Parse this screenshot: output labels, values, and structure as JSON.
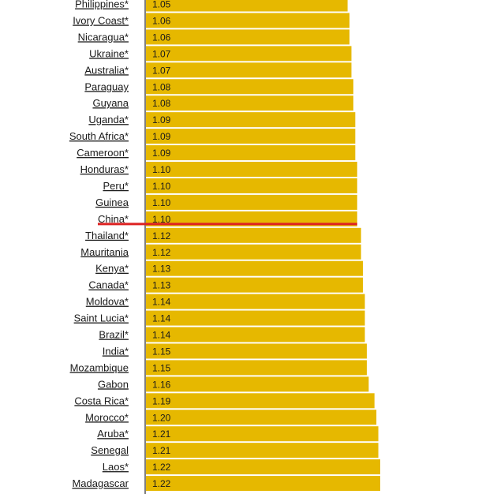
{
  "chart_data": {
    "type": "bar",
    "orientation": "horizontal",
    "title": "",
    "xlabel": "",
    "ylabel": "",
    "xlim": [
      0,
      1.22
    ],
    "grid": false,
    "legend": "none",
    "categories": [
      "Philippines*",
      "Ivory Coast*",
      "Nicaragua*",
      "Ukraine*",
      "Australia*",
      "Paraguay",
      "Guyana",
      "Uganda*",
      "South Africa*",
      "Cameroon*",
      "Honduras*",
      "Peru*",
      "Guinea",
      "China*",
      "Thailand*",
      "Mauritania",
      "Kenya*",
      "Canada*",
      "Moldova*",
      "Saint Lucia*",
      "Brazil*",
      "India*",
      "Mozambique",
      "Gabon",
      "Costa Rica*",
      "Morocco*",
      "Aruba*",
      "Senegal",
      "Laos*",
      "Madagascar"
    ],
    "values": [
      1.05,
      1.06,
      1.06,
      1.07,
      1.07,
      1.08,
      1.08,
      1.09,
      1.09,
      1.09,
      1.1,
      1.1,
      1.1,
      1.1,
      1.12,
      1.12,
      1.13,
      1.13,
      1.14,
      1.14,
      1.14,
      1.15,
      1.15,
      1.16,
      1.19,
      1.2,
      1.21,
      1.21,
      1.22,
      1.22
    ],
    "value_labels": [
      "1.05",
      "1.06",
      "1.06",
      "1.07",
      "1.07",
      "1.08",
      "1.08",
      "1.09",
      "1.09",
      "1.09",
      "1.10",
      "1.10",
      "1.10",
      "1.10",
      "1.12",
      "1.12",
      "1.13",
      "1.13",
      "1.14",
      "1.14",
      "1.14",
      "1.15",
      "1.15",
      "1.16",
      "1.19",
      "1.20",
      "1.21",
      "1.21",
      "1.22",
      "1.22"
    ],
    "highlight": {
      "category": "China*",
      "color": "#dd2222"
    }
  },
  "colors": {
    "bar": "#e6b800",
    "bar_border": "#ffffff",
    "axis": "#000000",
    "highlight_line": "#dd2222"
  }
}
